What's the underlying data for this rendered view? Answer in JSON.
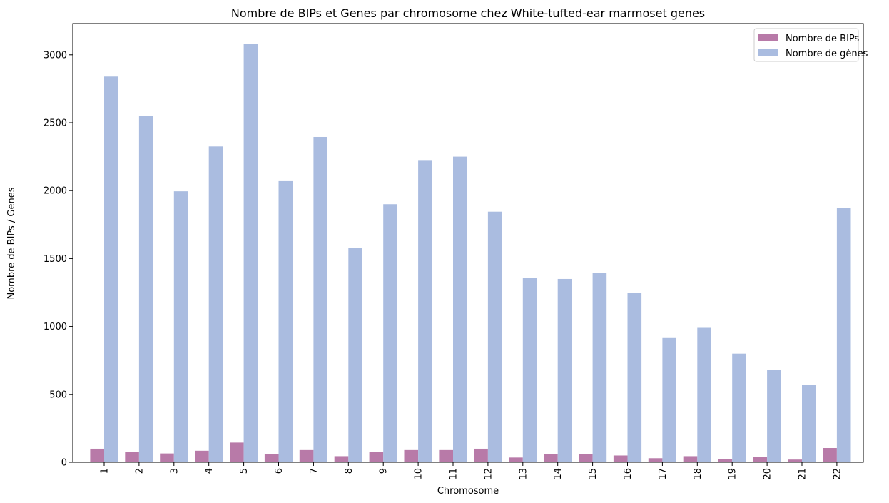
{
  "chart_data": {
    "type": "bar",
    "title": "Nombre de BIPs et Genes par chromosome chez White-tufted-ear marmoset genes",
    "xlabel": "Chromosome",
    "ylabel": "Nombre de BIPs / Genes",
    "categories": [
      "1",
      "2",
      "3",
      "4",
      "5",
      "6",
      "7",
      "8",
      "9",
      "10",
      "11",
      "12",
      "13",
      "14",
      "15",
      "16",
      "17",
      "18",
      "19",
      "20",
      "21",
      "22"
    ],
    "series": [
      {
        "name": "Nombre de BIPs",
        "color": "#b87aa8",
        "values": [
          100,
          75,
          65,
          85,
          145,
          60,
          90,
          45,
          75,
          90,
          90,
          100,
          35,
          60,
          60,
          50,
          30,
          45,
          25,
          40,
          20,
          105
        ]
      },
      {
        "name": "Nombre de gènes",
        "color": "#aabce0",
        "values": [
          2840,
          2550,
          1995,
          2325,
          3080,
          2075,
          2395,
          1580,
          1900,
          2225,
          2250,
          1845,
          1360,
          1350,
          1395,
          1250,
          915,
          990,
          800,
          680,
          570,
          1870
        ]
      }
    ],
    "y_ticks": [
      0,
      500,
      1000,
      1500,
      2000,
      2500,
      3000
    ],
    "ylim": [
      0,
      3230
    ],
    "legend_position": "top-right",
    "grid": false
  }
}
